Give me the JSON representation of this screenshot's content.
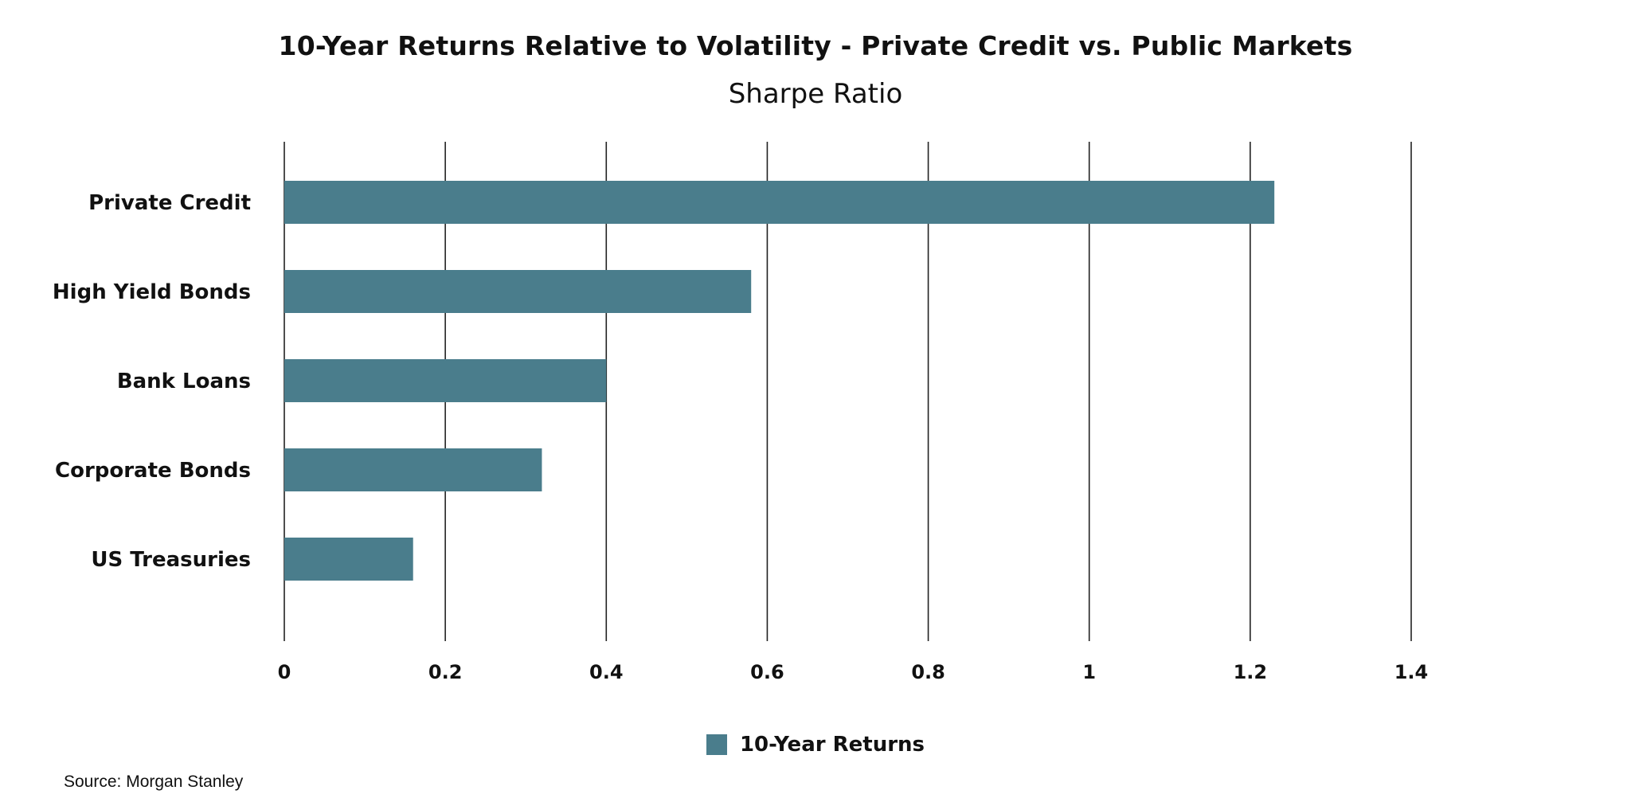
{
  "chart_data": {
    "type": "bar",
    "orientation": "horizontal",
    "title": "10-Year Returns Relative to Volatility - Private Credit vs. Public Markets",
    "subtitle": "Sharpe Ratio",
    "categories": [
      "Private Credit",
      "High Yield Bonds",
      "Bank Loans",
      "Corporate Bonds",
      "US Treasuries"
    ],
    "series": [
      {
        "name": "10-Year Returns",
        "values": [
          1.23,
          0.58,
          0.4,
          0.32,
          0.16
        ],
        "color": "#4a7d8c"
      }
    ],
    "xlim": [
      0,
      1.4
    ],
    "x_ticks": [
      0,
      0.2,
      0.4,
      0.6,
      0.8,
      1,
      1.2,
      1.4
    ],
    "x_tick_labels": [
      "0",
      "0.2",
      "0.4",
      "0.6",
      "0.8",
      "1",
      "1.2",
      "1.4"
    ],
    "grid": "vertical",
    "legend_position": "bottom-center",
    "xlabel": "",
    "ylabel": ""
  },
  "legend": {
    "label": "10-Year Returns",
    "color": "#4a7d8c"
  },
  "source": "Source: Morgan Stanley"
}
